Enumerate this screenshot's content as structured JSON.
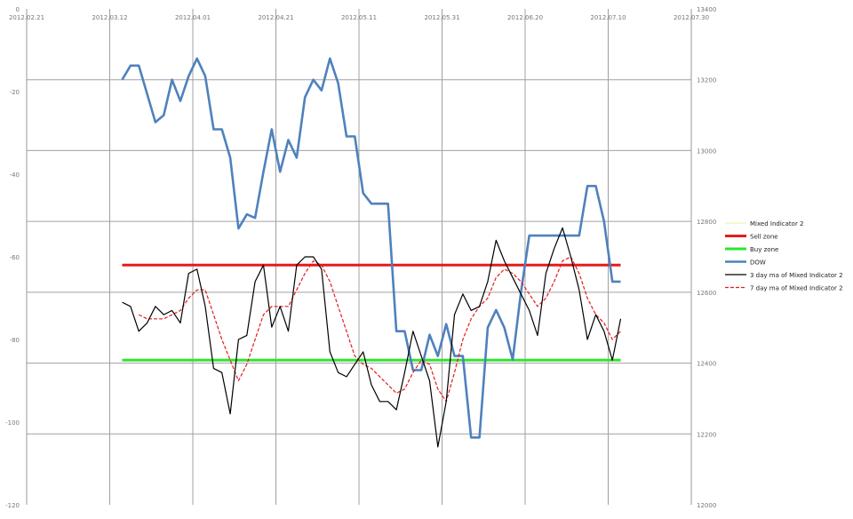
{
  "chart_data": {
    "type": "line",
    "title": "",
    "x_dates": [
      "2012.02.21",
      "2012.03.12",
      "2012.04.01",
      "2012.04.21",
      "2012.05.11",
      "2012.05.31",
      "2012.06.20",
      "2012.07.10",
      "2012.07.30"
    ],
    "left_axis": {
      "ylim": [
        -120,
        0
      ],
      "ticks": [
        "0",
        "-20",
        "-40",
        "-60",
        "-80",
        "-100",
        "-120"
      ],
      "tick_values": [
        0,
        -20,
        -40,
        -60,
        -80,
        -100,
        -120
      ]
    },
    "right_axis": {
      "ylim": [
        12000,
        13400
      ],
      "ticks": [
        "13400",
        "13200",
        "13000",
        "12800",
        "12600",
        "12400",
        "12200",
        "12000"
      ],
      "tick_values": [
        13400,
        13200,
        13000,
        12800,
        12600,
        12400,
        12200,
        12000
      ]
    },
    "grid": true,
    "legend_position": "right",
    "colors": {
      "mixed": "#f0eca8",
      "sell": "#e41c1c",
      "buy": "#2ee62e",
      "dow": "#4f81bd",
      "ma3": "#000000",
      "ma7": "#e41c1c"
    },
    "series": [
      {
        "name": "Mixed Indicator 2",
        "axis": "left",
        "x": [],
        "values": []
      },
      {
        "name": "Sell zone",
        "axis": "left",
        "x": [
          "2012.03.15",
          "2012.07.13"
        ],
        "values": [
          -62,
          -62
        ]
      },
      {
        "name": "Buy zone",
        "axis": "left",
        "x": [
          "2012.03.15",
          "2012.07.13"
        ],
        "values": [
          -85,
          -85
        ]
      },
      {
        "name": "DOW",
        "axis": "right",
        "x": [
          "2012.03.15",
          "2012.03.17",
          "2012.03.19",
          "2012.03.21",
          "2012.03.23",
          "2012.03.25",
          "2012.03.27",
          "2012.03.29",
          "2012.03.31",
          "2012.04.02",
          "2012.04.04",
          "2012.04.06",
          "2012.04.08",
          "2012.04.10",
          "2012.04.12",
          "2012.04.14",
          "2012.04.16",
          "2012.04.18",
          "2012.04.20",
          "2012.04.22",
          "2012.04.24",
          "2012.04.26",
          "2012.04.28",
          "2012.04.30",
          "2012.05.02",
          "2012.05.04",
          "2012.05.06",
          "2012.05.08",
          "2012.05.10",
          "2012.05.12",
          "2012.05.14",
          "2012.05.16",
          "2012.05.18",
          "2012.05.20",
          "2012.05.22",
          "2012.05.24",
          "2012.05.26",
          "2012.05.28",
          "2012.05.30",
          "2012.06.01",
          "2012.06.03",
          "2012.06.05",
          "2012.06.07",
          "2012.06.09",
          "2012.06.11",
          "2012.06.13",
          "2012.06.15",
          "2012.06.17",
          "2012.06.19",
          "2012.06.21",
          "2012.06.23",
          "2012.06.25",
          "2012.06.27",
          "2012.06.29",
          "2012.07.01",
          "2012.07.03",
          "2012.07.05",
          "2012.07.07",
          "2012.07.09",
          "2012.07.11",
          "2012.07.13"
        ],
        "values": [
          13200,
          13240,
          13240,
          13160,
          13080,
          13100,
          13200,
          13140,
          13210,
          13260,
          13210,
          13060,
          13060,
          12980,
          12780,
          12820,
          12810,
          12940,
          13060,
          12940,
          13030,
          12980,
          13150,
          13200,
          13170,
          13260,
          13190,
          13040,
          13040,
          12880,
          12850,
          12850,
          12850,
          12490,
          12490,
          12380,
          12380,
          12480,
          12420,
          12510,
          12420,
          12420,
          12190,
          12190,
          12500,
          12550,
          12500,
          12410,
          12600,
          12760,
          12760,
          12760,
          12760,
          12760,
          12760,
          12760,
          12900,
          12900,
          12800,
          12630,
          12630
        ]
      },
      {
        "name": "3 day ma of Mixed Indicator 2",
        "axis": "left",
        "x": [
          "2012.03.15",
          "2012.03.17",
          "2012.03.19",
          "2012.03.21",
          "2012.03.23",
          "2012.03.25",
          "2012.03.27",
          "2012.03.29",
          "2012.03.31",
          "2012.04.02",
          "2012.04.04",
          "2012.04.06",
          "2012.04.08",
          "2012.04.10",
          "2012.04.12",
          "2012.04.14",
          "2012.04.16",
          "2012.04.18",
          "2012.04.20",
          "2012.04.22",
          "2012.04.24",
          "2012.04.26",
          "2012.04.28",
          "2012.04.30",
          "2012.05.02",
          "2012.05.04",
          "2012.05.06",
          "2012.05.08",
          "2012.05.10",
          "2012.05.12",
          "2012.05.14",
          "2012.05.16",
          "2012.05.18",
          "2012.05.20",
          "2012.05.22",
          "2012.05.24",
          "2012.05.26",
          "2012.05.28",
          "2012.05.30",
          "2012.06.01",
          "2012.06.03",
          "2012.06.05",
          "2012.06.07",
          "2012.06.09",
          "2012.06.11",
          "2012.06.13",
          "2012.06.15",
          "2012.06.17",
          "2012.06.19",
          "2012.06.21",
          "2012.06.23",
          "2012.06.25",
          "2012.06.27",
          "2012.06.29",
          "2012.07.01",
          "2012.07.03",
          "2012.07.05",
          "2012.07.07",
          "2012.07.09",
          "2012.07.11",
          "2012.07.13"
        ],
        "values": [
          -71,
          -72,
          -78,
          -76,
          -72,
          -74,
          -73,
          -76,
          -64,
          -63,
          -72,
          -87,
          -88,
          -98,
          -80,
          -79,
          -66,
          -62,
          -77,
          -72,
          -78,
          -62,
          -60,
          -60,
          -63,
          -83,
          -88,
          -89,
          -86,
          -83,
          -91,
          -95,
          -95,
          -97,
          -88,
          -78,
          -84,
          -90,
          -106,
          -95,
          -74,
          -69,
          -73,
          -72,
          -66,
          -56,
          -61,
          -65,
          -69,
          -73,
          -79,
          -64,
          -58,
          -53,
          -60,
          -68,
          -80,
          -74,
          -78,
          -85,
          -75
        ]
      },
      {
        "name": "7 day ma of Mixed Indicator 2",
        "axis": "left",
        "x": [
          "2012.03.15",
          "2012.03.17",
          "2012.03.19",
          "2012.03.21",
          "2012.03.23",
          "2012.03.25",
          "2012.03.27",
          "2012.03.29",
          "2012.03.31",
          "2012.04.02",
          "2012.04.04",
          "2012.04.06",
          "2012.04.08",
          "2012.04.10",
          "2012.04.12",
          "2012.04.14",
          "2012.04.16",
          "2012.04.18",
          "2012.04.20",
          "2012.04.22",
          "2012.04.24",
          "2012.04.26",
          "2012.04.28",
          "2012.04.30",
          "2012.05.02",
          "2012.05.04",
          "2012.05.06",
          "2012.05.08",
          "2012.05.10",
          "2012.05.12",
          "2012.05.14",
          "2012.05.16",
          "2012.05.18",
          "2012.05.20",
          "2012.05.22",
          "2012.05.24",
          "2012.05.26",
          "2012.05.28",
          "2012.05.30",
          "2012.06.01",
          "2012.06.03",
          "2012.06.05",
          "2012.06.07",
          "2012.06.09",
          "2012.06.11",
          "2012.06.13",
          "2012.06.15",
          "2012.06.17",
          "2012.06.19",
          "2012.06.21",
          "2012.06.23",
          "2012.06.25",
          "2012.06.27",
          "2012.06.29",
          "2012.07.01",
          "2012.07.03",
          "2012.07.05",
          "2012.07.07",
          "2012.07.09",
          "2012.07.11",
          "2012.07.13"
        ],
        "values": [
          null,
          null,
          -74,
          -75,
          -75,
          -75,
          -74,
          -73,
          -70,
          -68,
          -68,
          -74,
          -80,
          -85,
          -90,
          -86,
          -80,
          -74,
          -72,
          -72,
          -72,
          -68,
          -64,
          -61,
          -62,
          -66,
          -72,
          -78,
          -84,
          -86,
          -87,
          -89,
          -91,
          -93,
          -92,
          -88,
          -85,
          -86,
          -92,
          -95,
          -88,
          -80,
          -75,
          -72,
          -70,
          -65,
          -63,
          -64,
          -66,
          -69,
          -72,
          -70,
          -66,
          -61,
          -60,
          -64,
          -70,
          -74,
          -76,
          -80,
          -78
        ]
      }
    ]
  }
}
